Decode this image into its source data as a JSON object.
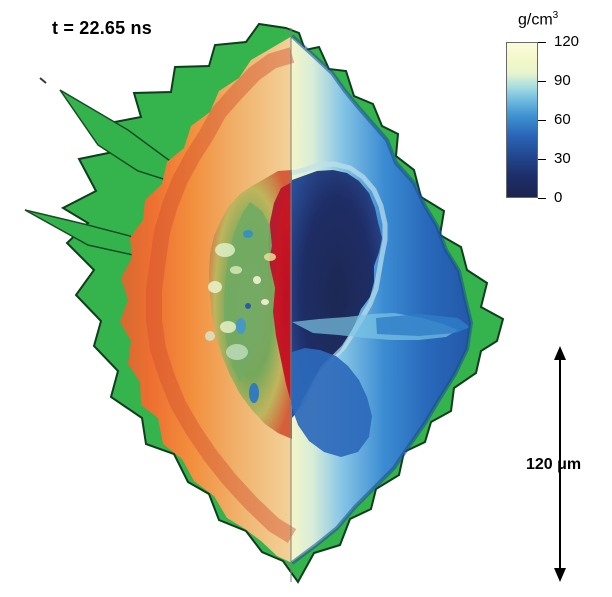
{
  "figure": {
    "time_label": "t = 22.65 ns",
    "colorbar": {
      "unit_base": "g/cm",
      "unit_exponent": "3",
      "ticks": [
        "120",
        "90",
        "60",
        "30",
        "0"
      ]
    },
    "scale_bar_label": "120 μm",
    "colors": {
      "surface_green": "#34b24d",
      "hot_red": "#c81e23",
      "warm_orange": "#ee6a2f",
      "dense_blue": "#2a64b6",
      "dark_core": "#1d2b62",
      "pale_yellow": "#fbfbdb"
    }
  }
}
